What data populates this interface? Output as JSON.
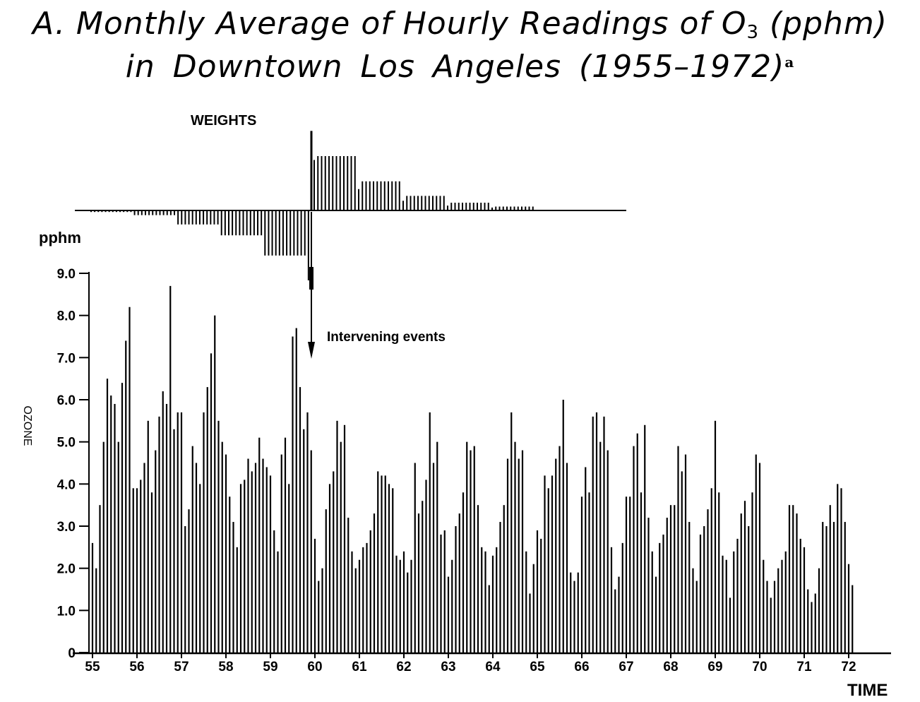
{
  "header": {
    "title_line1_pre": "A. Monthly Average of Hourly Readings of O",
    "title_sub": "3",
    "title_line1_post": " (pphm)",
    "title_line2": "in Downtown Los Angeles (1955–1972)",
    "title_footnote": "a"
  },
  "chart_data": {
    "type": "bar",
    "title": "",
    "ylabel": "OZONE",
    "yunit": "pphm",
    "xlabel": "TIME",
    "ylim": [
      0,
      9.0
    ],
    "yticks": [
      "0",
      "1.0",
      "2.0",
      "3.0",
      "4.0",
      "5.0",
      "6.0",
      "7.0",
      "8.0",
      "9.0"
    ],
    "xticks": [
      "55",
      "56",
      "57",
      "58",
      "59",
      "60",
      "61",
      "62",
      "63",
      "64",
      "65",
      "66",
      "67",
      "68",
      "69",
      "70",
      "71",
      "72"
    ],
    "start_year": 1955,
    "series": [
      {
        "values": [
          2.6,
          2.0,
          3.5,
          5.0,
          6.5,
          6.1,
          5.9,
          5.0,
          6.4,
          7.4,
          8.2,
          3.9,
          3.9,
          4.1,
          4.5,
          5.5,
          3.8,
          4.8,
          5.6,
          6.2,
          5.9,
          8.7,
          5.3,
          5.7,
          5.7,
          3.0,
          3.4,
          4.9,
          4.5,
          4.0,
          5.7,
          6.3,
          7.1,
          8.0,
          5.5,
          5.0,
          4.7,
          3.7,
          3.1,
          2.5,
          4.0,
          4.1,
          4.6,
          4.3,
          4.5,
          5.1,
          4.6,
          4.4,
          4.2,
          2.9,
          2.4,
          4.7,
          5.1,
          4.0,
          7.5,
          7.7,
          6.3,
          5.3,
          5.7,
          4.8,
          2.7,
          1.7,
          2.0,
          3.4,
          4.0,
          4.3,
          5.5,
          5.0,
          5.4,
          3.2,
          2.4,
          2.0,
          2.2,
          2.5,
          2.6,
          2.9,
          3.3,
          4.3,
          4.2,
          4.2,
          4.0,
          3.9,
          2.3,
          2.2,
          2.4,
          1.9,
          2.2,
          4.5,
          3.3,
          3.6,
          4.1,
          5.7,
          4.5,
          5.0,
          2.8,
          2.9,
          1.8,
          2.2,
          3.0,
          3.3,
          3.8,
          5.0,
          4.8,
          4.9,
          3.5,
          2.5,
          2.4,
          1.6,
          2.3,
          2.5,
          3.1,
          3.5,
          4.6,
          5.7,
          5.0,
          4.6,
          4.8,
          2.4,
          1.4,
          2.1,
          2.9,
          2.7,
          4.2,
          3.9,
          4.2,
          4.6,
          4.9,
          6.0,
          4.5,
          1.9,
          1.7,
          1.9,
          3.7,
          4.4,
          3.8,
          5.6,
          5.7,
          5.0,
          5.6,
          4.8,
          2.5,
          1.5,
          1.8,
          2.6,
          3.7,
          3.7,
          4.9,
          5.2,
          3.8,
          5.4,
          3.2,
          2.4,
          1.8,
          2.6,
          2.8,
          3.2,
          3.5,
          3.5,
          4.9,
          4.3,
          4.7,
          3.1,
          2.0,
          1.7,
          2.8,
          3.0,
          3.4,
          3.9,
          5.5,
          3.8,
          2.3,
          2.2,
          1.3,
          2.4,
          2.7,
          3.3,
          3.6,
          3.0,
          3.8,
          4.7,
          4.5,
          2.2,
          1.7,
          1.3,
          1.7,
          2.0,
          2.2,
          2.4,
          3.5,
          3.5,
          3.3,
          2.7,
          2.5,
          1.5,
          1.2,
          1.4,
          2.0,
          3.1,
          3.0,
          3.5,
          3.1,
          4.0,
          3.9,
          3.1,
          2.1,
          1.6
        ]
      }
    ],
    "weights": {
      "label": "WEIGHTS",
      "pre_values": [
        -0.02,
        -0.02,
        -0.02,
        -0.02,
        -0.02,
        -0.02,
        -0.02,
        -0.02,
        -0.02,
        -0.02,
        -0.02,
        -0.02,
        -0.06,
        -0.06,
        -0.06,
        -0.06,
        -0.06,
        -0.06,
        -0.06,
        -0.06,
        -0.06,
        -0.06,
        -0.06,
        -0.06,
        -0.18,
        -0.18,
        -0.18,
        -0.18,
        -0.18,
        -0.18,
        -0.18,
        -0.18,
        -0.18,
        -0.18,
        -0.18,
        -0.18,
        -0.32,
        -0.32,
        -0.32,
        -0.32,
        -0.32,
        -0.32,
        -0.32,
        -0.32,
        -0.32,
        -0.32,
        -0.32,
        -0.32,
        -0.58,
        -0.58,
        -0.58,
        -0.58,
        -0.58,
        -0.58,
        -0.58,
        -0.58,
        -0.58,
        -0.58,
        -0.58,
        -0.58,
        -0.9
      ],
      "spike": 0.8,
      "post_values": [
        0.52,
        0.56,
        0.56,
        0.56,
        0.56,
        0.56,
        0.56,
        0.56,
        0.56,
        0.56,
        0.56,
        0.56,
        0.22,
        0.3,
        0.3,
        0.3,
        0.3,
        0.3,
        0.3,
        0.3,
        0.3,
        0.3,
        0.3,
        0.3,
        0.1,
        0.15,
        0.15,
        0.15,
        0.15,
        0.15,
        0.15,
        0.15,
        0.15,
        0.15,
        0.15,
        0.15,
        0.05,
        0.08,
        0.08,
        0.08,
        0.08,
        0.08,
        0.08,
        0.08,
        0.08,
        0.08,
        0.08,
        0.08,
        0.03,
        0.04,
        0.04,
        0.04,
        0.04,
        0.04,
        0.04,
        0.04,
        0.04,
        0.04,
        0.04,
        0.04
      ]
    },
    "annotation": "Intervening events",
    "annotation_at": "1960-01"
  }
}
